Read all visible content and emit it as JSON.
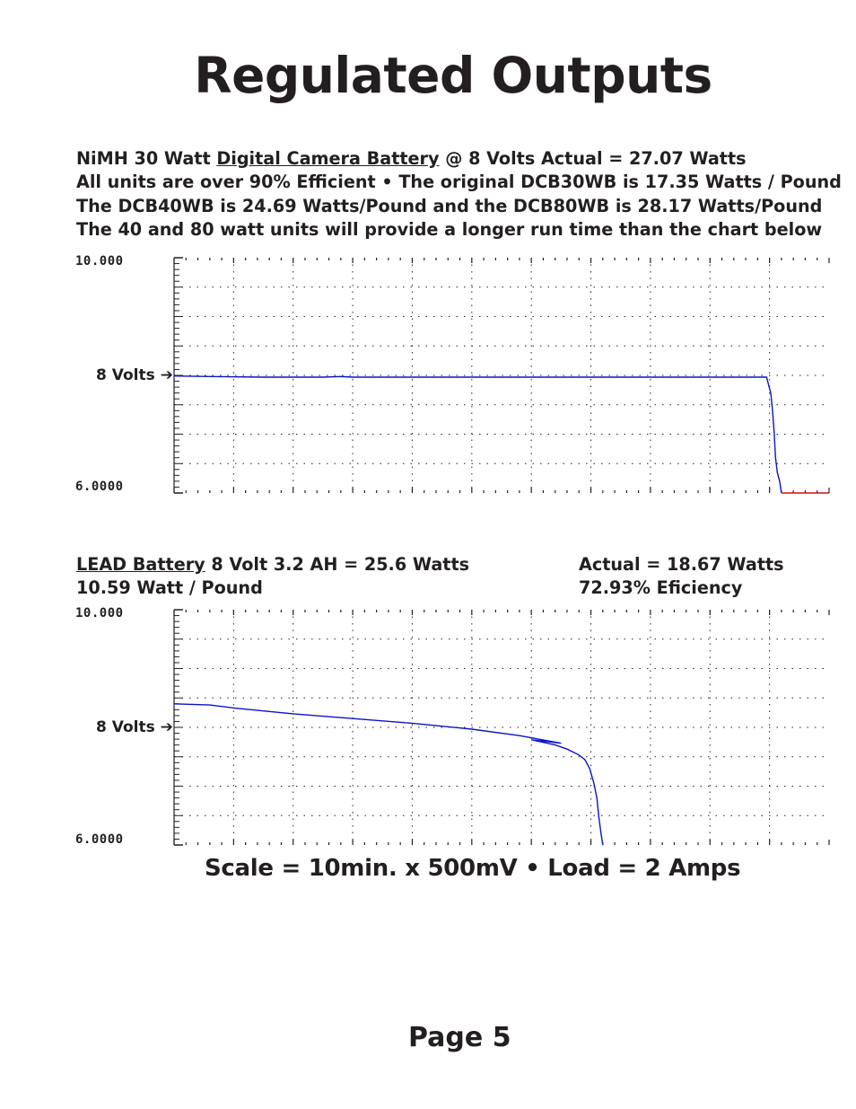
{
  "page": {
    "title": "Regulated Outputs",
    "scale_caption": "Scale = 10min. x 500mV  •  Load = 2 Amps",
    "page_number": "Page 5"
  },
  "section1": {
    "line1_prefix": "NiMH 30 Watt ",
    "line1_link": "Digital Camera Battery",
    "line1_suffix": " @ 8 Volts Actual = 27.07 Watts",
    "line2": "All units are over 90% Efficient • The original DCB30WB is 17.35 Watts / Pound",
    "line3": "The DCB40WB is 24.69 Watts/Pound and the DCB80WB is 28.17 Watts/Pound",
    "line4": "The 40 and 80 watt units will provide a longer run time than the chart below"
  },
  "section2": {
    "line1_link": "LEAD Battery",
    "line1_suffix": " 8 Volt 3.2 AH = 25.6 Watts",
    "line2": "10.59 Watt / Pound",
    "actual": "Actual = 18.67 Watts",
    "efficiency": "72.93% Eficiency"
  },
  "colors": {
    "trace": "#0a14c8",
    "end_trace": "#d01010",
    "grid": "#231f20",
    "text": "#231f20"
  },
  "chart_data": [
    {
      "type": "line",
      "name": "nimh",
      "ymax_label": "10.000",
      "ymin_label": "6.0000",
      "marker_label": "8 Volts ➔",
      "ylim": [
        6.0,
        10.0
      ],
      "xlim": [
        0,
        110
      ],
      "grid": true,
      "series": [
        {
          "points": [
            [
              0,
              7.99
            ],
            [
              6,
              7.98
            ],
            [
              15,
              7.97
            ],
            [
              25,
              7.97
            ],
            [
              28,
              7.98
            ],
            [
              30,
              7.97
            ],
            [
              50,
              7.97
            ],
            [
              70,
              7.97
            ],
            [
              90,
              7.97
            ],
            [
              99.5,
              7.97
            ],
            [
              100.2,
              7.7
            ],
            [
              100.5,
              7.4
            ],
            [
              100.8,
              7.0
            ],
            [
              101,
              6.6
            ],
            [
              101.3,
              6.35
            ],
            [
              101.7,
              6.2
            ],
            [
              102,
              6.0
            ]
          ]
        },
        {
          "points": [
            [
              102,
              6.0
            ],
            [
              110,
              6.0
            ]
          ]
        }
      ]
    },
    {
      "type": "line",
      "name": "lead",
      "ymax_label": "10.000",
      "ymin_label": "6.0000",
      "marker_label": "8 Volts ➔",
      "ylim": [
        6.0,
        10.0
      ],
      "xlim": [
        0,
        110
      ],
      "grid": true,
      "series": [
        {
          "points": [
            [
              0,
              8.4
            ],
            [
              6,
              8.38
            ],
            [
              10,
              8.33
            ],
            [
              15,
              8.28
            ],
            [
              20,
              8.23
            ],
            [
              30,
              8.15
            ],
            [
              40,
              8.07
            ],
            [
              50,
              7.97
            ],
            [
              58,
              7.86
            ],
            [
              65,
              7.73
            ],
            [
              60,
              7.79
            ],
            [
              64,
              7.7
            ],
            [
              66,
              7.63
            ],
            [
              68,
              7.53
            ],
            [
              69,
              7.45
            ],
            [
              69.8,
              7.3
            ],
            [
              70.5,
              7.05
            ],
            [
              71,
              6.8
            ],
            [
              71.3,
              6.5
            ],
            [
              71.7,
              6.2
            ],
            [
              72,
              6.0
            ]
          ]
        }
      ]
    }
  ]
}
